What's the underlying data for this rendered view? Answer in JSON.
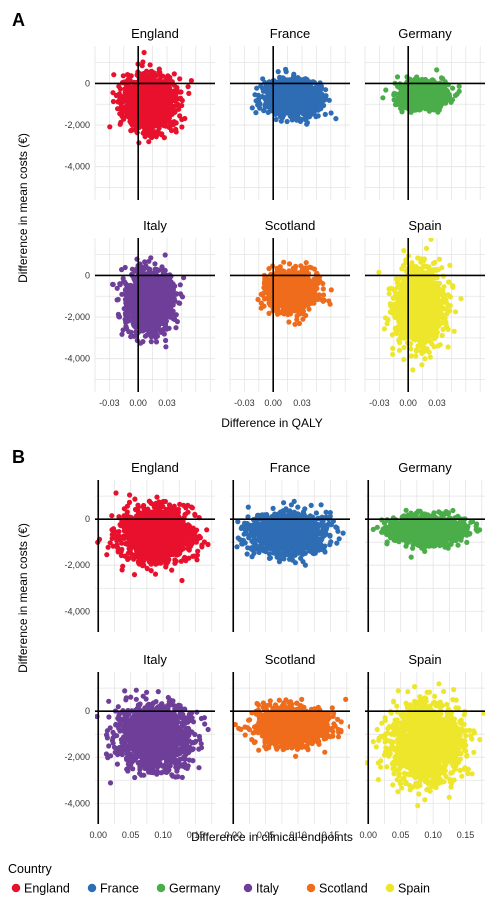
{
  "legend": {
    "title": "Country",
    "entries": [
      {
        "name": "England",
        "color": "#e8112d"
      },
      {
        "name": "France",
        "color": "#2e6db4"
      },
      {
        "name": "Germany",
        "color": "#4aad49"
      },
      {
        "name": "Italy",
        "color": "#6e3f99"
      },
      {
        "name": "Scotland",
        "color": "#ef6c1c"
      },
      {
        "name": "Spain",
        "color": "#ede62b"
      }
    ],
    "placement": "bottom"
  },
  "chart_data": [
    {
      "panel": "A",
      "type": "scatter",
      "xlabel": "Difference in QALY",
      "ylabel": "Difference in mean costs (€)",
      "xlim": [
        -0.045,
        0.08
      ],
      "ylim": [
        -5600,
        1800
      ],
      "xticks": [
        -0.03,
        0.0,
        0.03
      ],
      "xtick_labels": [
        "-0.03",
        "0.00",
        "0.03"
      ],
      "yticks": [
        -4000,
        -2000,
        0
      ],
      "ytick_labels": [
        "-4,000",
        "-2,000",
        "0"
      ],
      "grid": true,
      "facets": [
        {
          "title": "England",
          "color": "#e8112d",
          "cloud": {
            "x_center": 0.012,
            "x_spread": 0.017,
            "y_center": -900,
            "y_spread": 800,
            "n": 1500
          }
        },
        {
          "title": "France",
          "color": "#2e6db4",
          "cloud": {
            "x_center": 0.02,
            "x_spread": 0.018,
            "y_center": -700,
            "y_spread": 500,
            "n": 1500
          }
        },
        {
          "title": "Germany",
          "color": "#4aad49",
          "cloud": {
            "x_center": 0.015,
            "x_spread": 0.015,
            "y_center": -550,
            "y_spread": 380,
            "n": 1500
          }
        },
        {
          "title": "Italy",
          "color": "#6e3f99",
          "cloud": {
            "x_center": 0.012,
            "x_spread": 0.016,
            "y_center": -1200,
            "y_spread": 900,
            "n": 1500
          }
        },
        {
          "title": "Scotland",
          "color": "#ef6c1c",
          "cloud": {
            "x_center": 0.018,
            "x_spread": 0.016,
            "y_center": -700,
            "y_spread": 550,
            "n": 1500
          }
        },
        {
          "title": "Spain",
          "color": "#ede62b",
          "cloud": {
            "x_center": 0.012,
            "x_spread": 0.016,
            "y_center": -1500,
            "y_spread": 1100,
            "n": 1500
          }
        }
      ]
    },
    {
      "panel": "B",
      "type": "scatter",
      "xlabel": "Difference in clinical endpoints",
      "ylabel": "Difference in mean costs (€)",
      "xlim": [
        -0.005,
        0.18
      ],
      "ylim": [
        -4900,
        1700
      ],
      "xticks": [
        0.0,
        0.05,
        0.1,
        0.15
      ],
      "xtick_labels": [
        "0.00",
        "0.05",
        "0.10",
        "0.15"
      ],
      "yticks": [
        -4000,
        -2000,
        0
      ],
      "ytick_labels": [
        "-4,000",
        "-2,000",
        "0"
      ],
      "grid": true,
      "facets": [
        {
          "title": "England",
          "color": "#e8112d",
          "cloud": {
            "x_center": 0.09,
            "x_spread": 0.035,
            "y_center": -700,
            "y_spread": 720,
            "n": 1500
          }
        },
        {
          "title": "France",
          "color": "#2e6db4",
          "cloud": {
            "x_center": 0.085,
            "x_spread": 0.035,
            "y_center": -600,
            "y_spread": 520,
            "n": 1500
          }
        },
        {
          "title": "Germany",
          "color": "#4aad49",
          "cloud": {
            "x_center": 0.09,
            "x_spread": 0.035,
            "y_center": -450,
            "y_spread": 360,
            "n": 1500
          }
        },
        {
          "title": "Italy",
          "color": "#6e3f99",
          "cloud": {
            "x_center": 0.085,
            "x_spread": 0.036,
            "y_center": -1100,
            "y_spread": 850,
            "n": 1500
          }
        },
        {
          "title": "Scotland",
          "color": "#ef6c1c",
          "cloud": {
            "x_center": 0.09,
            "x_spread": 0.035,
            "y_center": -650,
            "y_spread": 500,
            "n": 1500
          }
        },
        {
          "title": "Spain",
          "color": "#ede62b",
          "cloud": {
            "x_center": 0.09,
            "x_spread": 0.036,
            "y_center": -1400,
            "y_spread": 1050,
            "n": 1500
          }
        }
      ]
    }
  ]
}
